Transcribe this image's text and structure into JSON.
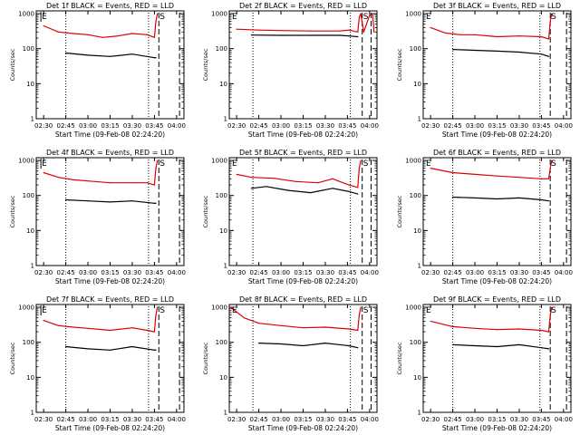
{
  "figure": {
    "time_axis": {
      "tick_labels": [
        "02:30",
        "02:45",
        "03:00",
        "03:15",
        "03:30",
        "03:45",
        "04:00"
      ],
      "tick_minutes": [
        150,
        165,
        180,
        195,
        210,
        225,
        240
      ],
      "range_minutes": [
        145,
        245
      ]
    },
    "count_axis": {
      "scale": "log",
      "range": [
        1,
        1200
      ],
      "tick_values": [
        1,
        10,
        100,
        1000
      ],
      "tick_labels": [
        "1",
        "10",
        "100",
        "1000"
      ]
    },
    "colors": {
      "events": "#000000",
      "lld": "#dd0000",
      "background": "#ffffff"
    },
    "e_marker": "E",
    "s_marker": "S"
  },
  "chart_data": [
    {
      "type": "line",
      "title": "Det 1f BLACK = Events, RED = LLD",
      "xlabel": "Start Time (09-Feb-08 02:24:20)",
      "ylabel": "Counts/sec",
      "series": [
        {
          "name": "Events",
          "color": "#000000",
          "x": [
            165,
            180,
            195,
            210,
            225,
            226
          ],
          "y": [
            75,
            65,
            60,
            70,
            55,
            55
          ]
        },
        {
          "name": "LLD",
          "color": "#dd0000",
          "x": [
            150,
            160,
            170,
            180,
            190,
            200,
            210,
            220,
            225,
            226,
            227
          ],
          "y": [
            450,
            300,
            270,
            250,
            210,
            230,
            270,
            250,
            210,
            600,
            1000
          ]
        }
      ],
      "dotted_lines": [
        165,
        221
      ],
      "dashed_lines": [
        228,
        242
      ],
      "e_pos": 150,
      "s_pos": 228
    },
    {
      "type": "line",
      "title": "Det 2f BLACK = Events, RED = LLD",
      "xlabel": "Start Time (09-Feb-08 02:24:20)",
      "ylabel": "Counts/sec",
      "series": [
        {
          "name": "Events",
          "color": "#000000",
          "x": [
            160,
            180,
            200,
            220,
            226,
            232
          ],
          "y": [
            245,
            240,
            240,
            240,
            230,
            220
          ]
        },
        {
          "name": "LLD",
          "color": "#dd0000",
          "x": [
            150,
            165,
            180,
            200,
            220,
            226,
            232,
            233,
            234,
            236,
            240,
            242,
            243
          ],
          "y": [
            360,
            340,
            330,
            320,
            320,
            340,
            300,
            800,
            1000,
            300,
            900,
            1000,
            300
          ]
        }
      ],
      "dotted_lines": [
        161,
        227
      ],
      "dashed_lines": [
        235,
        241
      ],
      "e_pos": 0,
      "s_pos": 235
    },
    {
      "type": "line",
      "title": "Det 3f BLACK = Events, RED = LLD",
      "xlabel": "Start Time (09-Feb-08 02:24:20)",
      "ylabel": "Counts/sec",
      "series": [
        {
          "name": "Events",
          "color": "#000000",
          "x": [
            165,
            180,
            195,
            210,
            225,
            230
          ],
          "y": [
            95,
            90,
            85,
            80,
            70,
            60
          ]
        },
        {
          "name": "LLD",
          "color": "#dd0000",
          "x": [
            150,
            160,
            170,
            180,
            195,
            210,
            225,
            230,
            231,
            232
          ],
          "y": [
            400,
            280,
            250,
            250,
            220,
            230,
            220,
            190,
            600,
            1000
          ]
        }
      ],
      "dotted_lines": [
        165,
        224
      ],
      "dashed_lines": [
        231,
        242
      ],
      "e_pos": 0,
      "s_pos": 231
    },
    {
      "type": "line",
      "title": "Det 4f BLACK = Events, RED = LLD",
      "xlabel": "Start Time (09-Feb-08 02:24:20)",
      "ylabel": "Counts/sec",
      "series": [
        {
          "name": "Events",
          "color": "#000000",
          "x": [
            165,
            180,
            195,
            210,
            225,
            226
          ],
          "y": [
            75,
            70,
            65,
            70,
            60,
            60
          ]
        },
        {
          "name": "LLD",
          "color": "#dd0000",
          "x": [
            150,
            160,
            170,
            180,
            195,
            210,
            220,
            225,
            226,
            227
          ],
          "y": [
            450,
            330,
            280,
            260,
            230,
            230,
            230,
            200,
            600,
            1000
          ]
        }
      ],
      "dotted_lines": [
        165,
        221
      ],
      "dashed_lines": [
        228,
        242
      ],
      "e_pos": 150,
      "s_pos": 228
    },
    {
      "type": "line",
      "title": "Det 5f BLACK = Events, RED = LLD",
      "xlabel": "Start Time (09-Feb-08 02:24:20)",
      "ylabel": "Counts/sec",
      "series": [
        {
          "name": "Events",
          "color": "#000000",
          "x": [
            160,
            170,
            185,
            200,
            215,
            226,
            232
          ],
          "y": [
            160,
            180,
            140,
            120,
            160,
            130,
            110
          ]
        },
        {
          "name": "LLD",
          "color": "#dd0000",
          "x": [
            150,
            160,
            175,
            190,
            205,
            215,
            226,
            232,
            233,
            234
          ],
          "y": [
            400,
            330,
            310,
            250,
            230,
            300,
            200,
            170,
            600,
            1000
          ]
        }
      ],
      "dotted_lines": [
        161,
        227
      ],
      "dashed_lines": [
        235,
        241
      ],
      "e_pos": 0,
      "s_pos": 235
    },
    {
      "type": "line",
      "title": "Det 6f BLACK = Events, RED = LLD",
      "xlabel": "Start Time (09-Feb-08 02:24:20)",
      "ylabel": "Counts/sec",
      "series": [
        {
          "name": "Events",
          "color": "#000000",
          "x": [
            165,
            180,
            195,
            210,
            225,
            230
          ],
          "y": [
            90,
            85,
            80,
            85,
            75,
            70
          ]
        },
        {
          "name": "LLD",
          "color": "#dd0000",
          "x": [
            150,
            165,
            180,
            195,
            210,
            225,
            230,
            231,
            232
          ],
          "y": [
            600,
            450,
            400,
            360,
            330,
            300,
            300,
            600,
            1000
          ]
        }
      ],
      "dotted_lines": [
        165,
        224
      ],
      "dashed_lines": [
        231,
        242
      ],
      "e_pos": 0,
      "s_pos": 231
    },
    {
      "type": "line",
      "title": "Det 7f BLACK = Events, RED = LLD",
      "xlabel": "Start Time (09-Feb-08 02:24:20)",
      "ylabel": "Counts/sec",
      "series": [
        {
          "name": "Events",
          "color": "#000000",
          "x": [
            165,
            180,
            195,
            210,
            225,
            226
          ],
          "y": [
            75,
            65,
            60,
            75,
            60,
            60
          ]
        },
        {
          "name": "LLD",
          "color": "#dd0000",
          "x": [
            150,
            160,
            170,
            180,
            195,
            210,
            220,
            225,
            226,
            227
          ],
          "y": [
            420,
            300,
            270,
            250,
            220,
            260,
            220,
            200,
            600,
            1000
          ]
        }
      ],
      "dotted_lines": [
        165,
        221
      ],
      "dashed_lines": [
        228,
        242
      ],
      "e_pos": 150,
      "s_pos": 228
    },
    {
      "type": "line",
      "title": "Det 8f BLACK = Events, RED = LLD",
      "xlabel": "Start Time (09-Feb-08 02:24:20)",
      "ylabel": "Counts/sec",
      "series": [
        {
          "name": "Events",
          "color": "#000000",
          "x": [
            165,
            180,
            195,
            210,
            226,
            232
          ],
          "y": [
            95,
            90,
            80,
            95,
            80,
            70
          ]
        },
        {
          "name": "LLD",
          "color": "#dd0000",
          "x": [
            146,
            155,
            165,
            180,
            195,
            210,
            226,
            232,
            233,
            234
          ],
          "y": [
            1000,
            500,
            350,
            300,
            260,
            270,
            240,
            220,
            600,
            1000
          ]
        }
      ],
      "dotted_lines": [
        161,
        227
      ],
      "dashed_lines": [
        235,
        241
      ],
      "e_pos": 0,
      "s_pos": 235
    },
    {
      "type": "line",
      "title": "Det 9f BLACK = Events, RED = LLD",
      "xlabel": "Start Time (09-Feb-08 02:24:20)",
      "ylabel": "Counts/sec",
      "series": [
        {
          "name": "Events",
          "color": "#000000",
          "x": [
            165,
            180,
            195,
            210,
            225,
            230
          ],
          "y": [
            85,
            80,
            75,
            85,
            70,
            65
          ]
        },
        {
          "name": "LLD",
          "color": "#dd0000",
          "x": [
            150,
            165,
            180,
            195,
            210,
            225,
            230,
            231,
            232
          ],
          "y": [
            400,
            280,
            250,
            230,
            240,
            220,
            200,
            600,
            1000
          ]
        }
      ],
      "dotted_lines": [
        165,
        224
      ],
      "dashed_lines": [
        231,
        242
      ],
      "e_pos": 0,
      "s_pos": 231
    }
  ]
}
